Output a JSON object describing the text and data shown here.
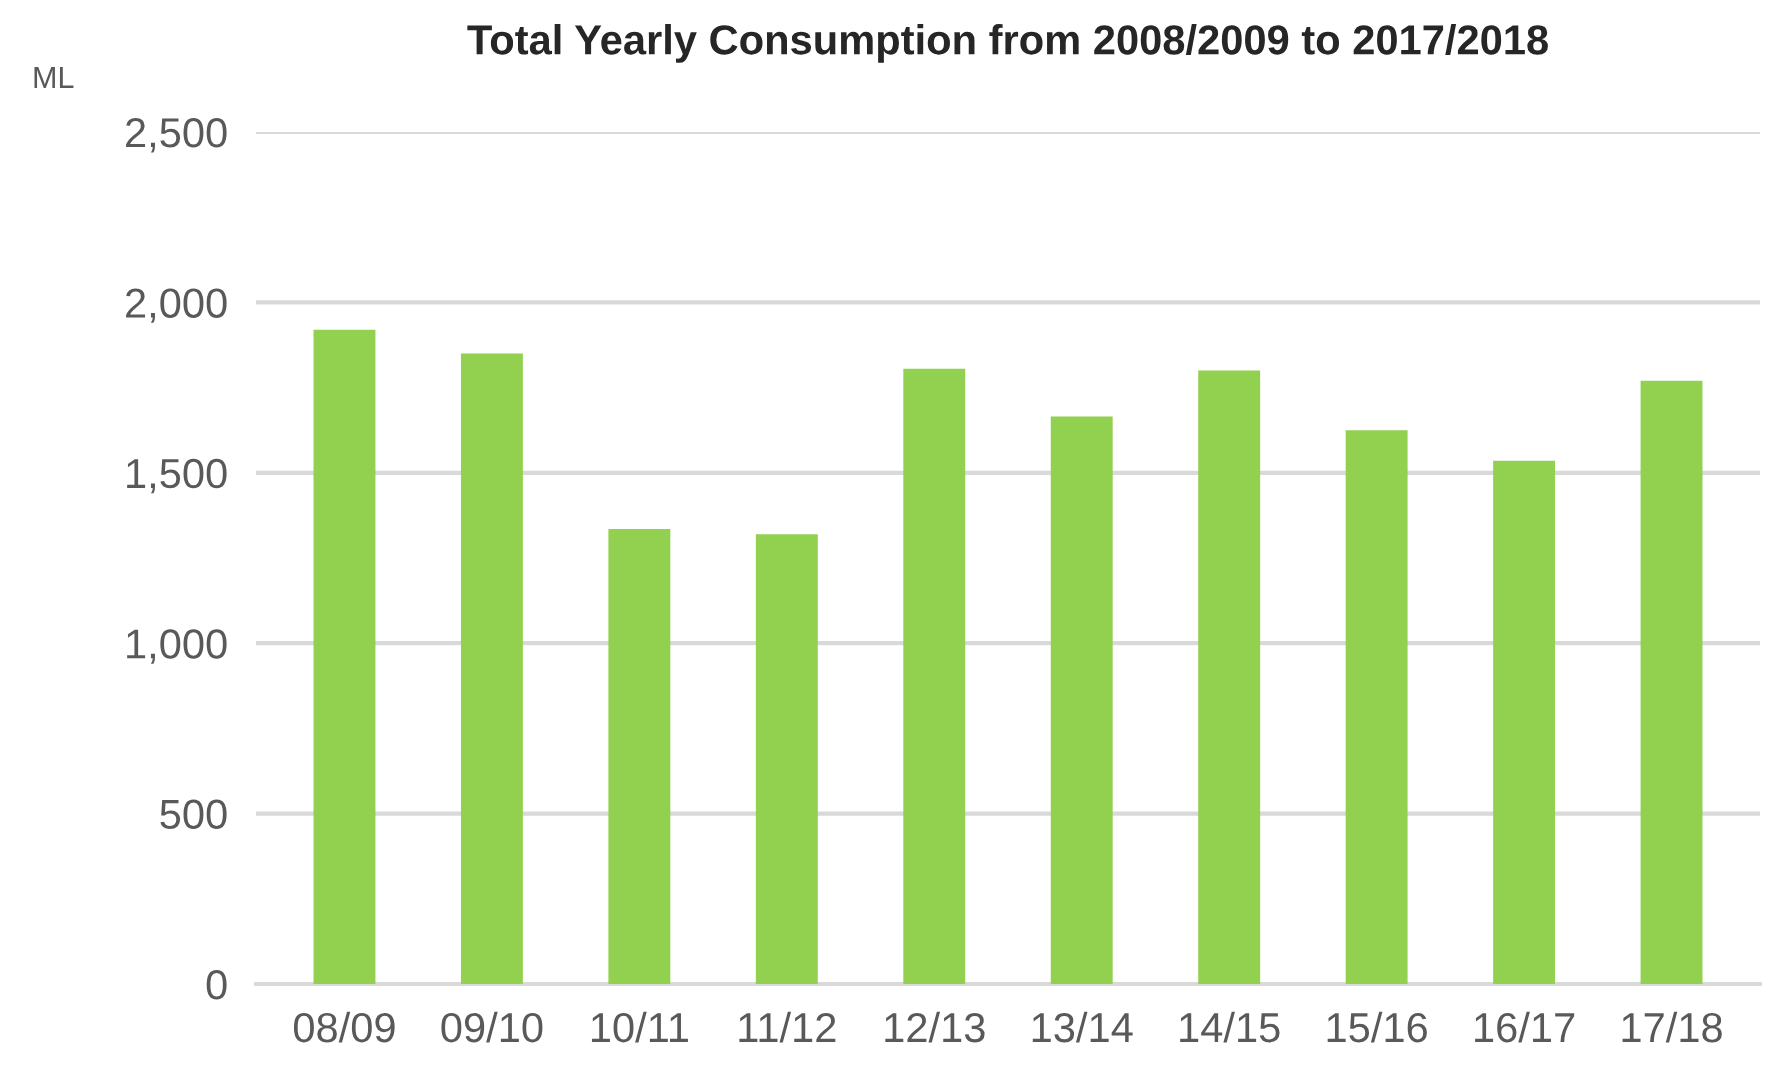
{
  "chart_data": {
    "type": "bar",
    "title": "Total Yearly Consumption from 2008/2009 to 2017/2018",
    "ylabel": "ML",
    "categories": [
      "08/09",
      "09/10",
      "10/11",
      "11/12",
      "12/13",
      "13/14",
      "14/15",
      "15/16",
      "16/17",
      "17/18"
    ],
    "values": [
      1920,
      1850,
      1335,
      1320,
      1805,
      1665,
      1800,
      1625,
      1535,
      1770
    ],
    "color": "#92d050",
    "ylim": [
      0,
      2500
    ],
    "yticks": [
      {
        "value": 0,
        "label": "0"
      },
      {
        "value": 500,
        "label": "500"
      },
      {
        "value": 1000,
        "label": "1,000"
      },
      {
        "value": 1500,
        "label": "1,500"
      },
      {
        "value": 2000,
        "label": "2,000"
      },
      {
        "value": 2500,
        "label": "2,500"
      }
    ],
    "grid": "y"
  }
}
